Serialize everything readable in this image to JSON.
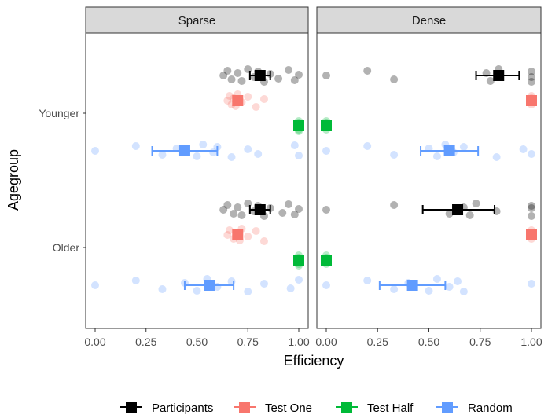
{
  "chart_data": {
    "type": "scatter",
    "xlabel": "Efficiency",
    "ylabel": "Agegroup",
    "xlim": [
      0,
      1
    ],
    "x_ticks": [
      "0.00",
      "0.25",
      "0.50",
      "0.75",
      "1.00"
    ],
    "y_categories": [
      "Younger",
      "Older"
    ],
    "panels": [
      "Sparse",
      "Dense"
    ],
    "legend_position": "bottom",
    "series": [
      {
        "name": "Participants",
        "color": "#000000"
      },
      {
        "name": "Test One",
        "color": "#F8766D"
      },
      {
        "name": "Test Half",
        "color": "#00BA38"
      },
      {
        "name": "Random",
        "color": "#619CFF"
      }
    ],
    "summaries": [
      {
        "panel": "Sparse",
        "group": "Younger",
        "series": "Participants",
        "mean": 0.81,
        "lo": 0.76,
        "hi": 0.86
      },
      {
        "panel": "Sparse",
        "group": "Younger",
        "series": "Test One",
        "mean": 0.7
      },
      {
        "panel": "Sparse",
        "group": "Younger",
        "series": "Test Half",
        "mean": 1.0
      },
      {
        "panel": "Sparse",
        "group": "Younger",
        "series": "Random",
        "mean": 0.44,
        "lo": 0.28,
        "hi": 0.6
      },
      {
        "panel": "Sparse",
        "group": "Older",
        "series": "Participants",
        "mean": 0.81,
        "lo": 0.76,
        "hi": 0.86
      },
      {
        "panel": "Sparse",
        "group": "Older",
        "series": "Test One",
        "mean": 0.7
      },
      {
        "panel": "Sparse",
        "group": "Older",
        "series": "Test Half",
        "mean": 1.0
      },
      {
        "panel": "Sparse",
        "group": "Older",
        "series": "Random",
        "mean": 0.56,
        "lo": 0.44,
        "hi": 0.68
      },
      {
        "panel": "Dense",
        "group": "Younger",
        "series": "Participants",
        "mean": 0.84,
        "lo": 0.73,
        "hi": 0.94
      },
      {
        "panel": "Dense",
        "group": "Younger",
        "series": "Test One",
        "mean": 1.0
      },
      {
        "panel": "Dense",
        "group": "Younger",
        "series": "Test Half",
        "mean": 0.0
      },
      {
        "panel": "Dense",
        "group": "Younger",
        "series": "Random",
        "mean": 0.6,
        "lo": 0.46,
        "hi": 0.74
      },
      {
        "panel": "Dense",
        "group": "Older",
        "series": "Participants",
        "mean": 0.64,
        "lo": 0.47,
        "hi": 0.82
      },
      {
        "panel": "Dense",
        "group": "Older",
        "series": "Test One",
        "mean": 1.0
      },
      {
        "panel": "Dense",
        "group": "Older",
        "series": "Test Half",
        "mean": 0.0
      },
      {
        "panel": "Dense",
        "group": "Older",
        "series": "Random",
        "mean": 0.42,
        "lo": 0.26,
        "hi": 0.58
      }
    ],
    "points": [
      {
        "panel": "Sparse",
        "group": "Younger",
        "series": "Participants",
        "x": [
          0.63,
          0.65,
          0.67,
          0.7,
          0.72,
          0.75,
          0.78,
          0.8,
          0.83,
          0.86,
          0.9,
          0.95,
          0.98,
          1.0
        ]
      },
      {
        "panel": "Sparse",
        "group": "Younger",
        "series": "Test One",
        "x": [
          0.65,
          0.66,
          0.67,
          0.68,
          0.69,
          0.7,
          0.72,
          0.75,
          0.79,
          0.83
        ]
      },
      {
        "panel": "Sparse",
        "group": "Younger",
        "series": "Test Half",
        "x": [
          1.0,
          1.0,
          1.0,
          1.0,
          1.0
        ]
      },
      {
        "panel": "Sparse",
        "group": "Younger",
        "series": "Random",
        "x": [
          0.0,
          0.2,
          0.33,
          0.4,
          0.5,
          0.53,
          0.58,
          0.6,
          0.67,
          0.75,
          0.8,
          0.98,
          1.0
        ]
      },
      {
        "panel": "Sparse",
        "group": "Older",
        "series": "Participants",
        "x": [
          0.63,
          0.65,
          0.68,
          0.7,
          0.72,
          0.75,
          0.78,
          0.8,
          0.83,
          0.86,
          0.92,
          0.95,
          0.98,
          1.0
        ]
      },
      {
        "panel": "Sparse",
        "group": "Older",
        "series": "Test One",
        "x": [
          0.65,
          0.66,
          0.68,
          0.7,
          0.71,
          0.72,
          0.75,
          0.79,
          0.83
        ]
      },
      {
        "panel": "Sparse",
        "group": "Older",
        "series": "Test Half",
        "x": [
          1.0,
          1.0,
          1.0,
          1.0,
          1.0
        ]
      },
      {
        "panel": "Sparse",
        "group": "Older",
        "series": "Random",
        "x": [
          0.0,
          0.2,
          0.33,
          0.44,
          0.5,
          0.55,
          0.6,
          0.67,
          0.75,
          0.83,
          0.96,
          1.0
        ]
      },
      {
        "panel": "Dense",
        "group": "Younger",
        "series": "Participants",
        "x": [
          0.0,
          0.2,
          0.33,
          0.78,
          0.8,
          0.84,
          1.0,
          1.0,
          1.0
        ]
      },
      {
        "panel": "Dense",
        "group": "Younger",
        "series": "Test One",
        "x": [
          1.0,
          1.0,
          1.0,
          1.0
        ]
      },
      {
        "panel": "Dense",
        "group": "Younger",
        "series": "Test Half",
        "x": [
          0.0,
          0.0,
          0.0,
          0.0
        ]
      },
      {
        "panel": "Dense",
        "group": "Younger",
        "series": "Random",
        "x": [
          0.0,
          0.2,
          0.33,
          0.5,
          0.54,
          0.58,
          0.62,
          0.67,
          0.83,
          0.96,
          1.0
        ]
      },
      {
        "panel": "Dense",
        "group": "Older",
        "series": "Participants",
        "x": [
          0.0,
          0.33,
          0.6,
          0.67,
          0.7,
          0.73,
          0.83,
          1.0,
          1.0,
          1.0
        ]
      },
      {
        "panel": "Dense",
        "group": "Older",
        "series": "Test One",
        "x": [
          1.0,
          1.0,
          1.0,
          1.0
        ]
      },
      {
        "panel": "Dense",
        "group": "Older",
        "series": "Test Half",
        "x": [
          0.0,
          0.0,
          0.0,
          0.0
        ]
      },
      {
        "panel": "Dense",
        "group": "Older",
        "series": "Random",
        "x": [
          0.0,
          0.2,
          0.33,
          0.4,
          0.5,
          0.54,
          0.6,
          0.64,
          0.67,
          1.0
        ]
      }
    ]
  }
}
